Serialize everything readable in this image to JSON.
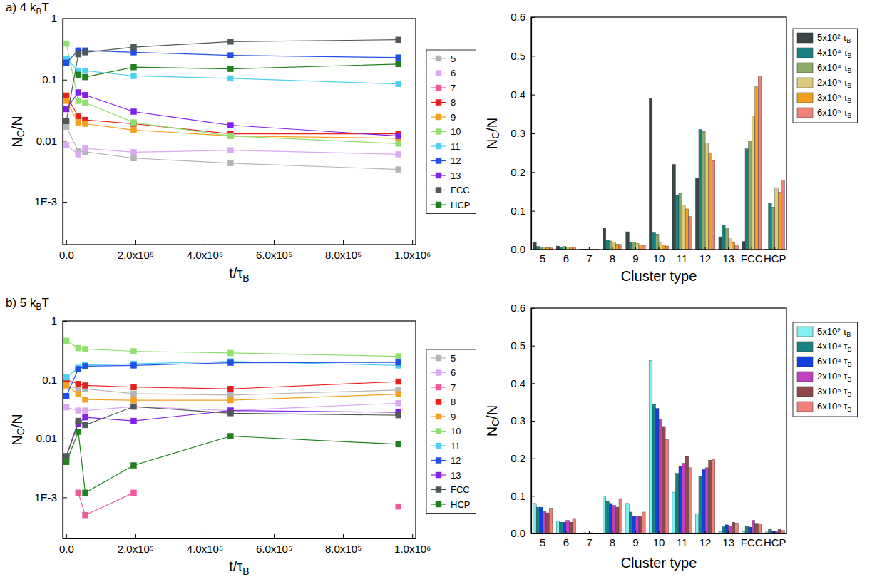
{
  "chart_data": [
    {
      "type": "line",
      "title": "a) 4 kBT",
      "x_label": "t/τB",
      "y_label": "NC/N",
      "x": [
        500,
        35000,
        55000,
        195000,
        475000,
        960000
      ],
      "xlim": [
        -10000,
        1010000
      ],
      "xticks": [
        {
          "value": 0,
          "label": "0.0"
        },
        {
          "value": 200000,
          "label": "2.0x10⁵"
        },
        {
          "value": 400000,
          "label": "4.0x10⁵"
        },
        {
          "value": 600000,
          "label": "6.0x10⁵"
        },
        {
          "value": 800000,
          "label": "8.0x10⁵"
        },
        {
          "value": 1000000,
          "label": "1.0x10⁶"
        }
      ],
      "ylim": [
        0.0002,
        1
      ],
      "yticks": [
        {
          "value": 0.001,
          "label": "1E-3"
        },
        0.01,
        0.1,
        1
      ],
      "log": "y",
      "grid": false,
      "legend": "right",
      "marker": "square",
      "series": [
        {
          "name": "5",
          "color": "#b4b4b4",
          "values": [
            0.017,
            0.0068,
            0.0066,
            0.0052,
            0.0043,
            0.0034
          ]
        },
        {
          "name": "6",
          "color": "#d9a9f2",
          "values": [
            0.0085,
            0.006,
            0.0075,
            0.0065,
            0.007,
            0.006
          ]
        },
        {
          "name": "7",
          "color": "#f0569a",
          "values": [
            null,
            null,
            null,
            null,
            null,
            null
          ]
        },
        {
          "name": "8",
          "color": "#e8201c",
          "values": [
            0.055,
            0.025,
            0.022,
            0.019,
            0.013,
            0.013
          ]
        },
        {
          "name": "9",
          "color": "#f6a020",
          "values": [
            0.045,
            0.02,
            0.019,
            0.015,
            0.012,
            0.011
          ]
        },
        {
          "name": "10",
          "color": "#90e070",
          "values": [
            0.39,
            0.045,
            0.042,
            0.02,
            0.012,
            0.009
          ]
        },
        {
          "name": "11",
          "color": "#50d0f0",
          "values": [
            0.22,
            0.14,
            0.14,
            0.115,
            0.105,
            0.085
          ]
        },
        {
          "name": "12",
          "color": "#2050e8",
          "values": [
            0.19,
            0.3,
            0.3,
            0.28,
            0.25,
            0.23
          ]
        },
        {
          "name": "13",
          "color": "#8020e8",
          "values": [
            0.033,
            0.062,
            0.056,
            0.03,
            0.018,
            0.012
          ]
        },
        {
          "name": "FCC",
          "color": "#505858",
          "values": [
            0.021,
            0.26,
            0.28,
            0.34,
            0.42,
            0.45
          ]
        },
        {
          "name": "HCP",
          "color": "#208020",
          "values": [
            null,
            0.12,
            0.11,
            0.16,
            0.15,
            0.18
          ]
        }
      ]
    },
    {
      "type": "bar",
      "x_label": "Cluster type",
      "y_label": "NC/N",
      "categories": [
        "5",
        "6",
        "7",
        "8",
        "9",
        "10",
        "11",
        "12",
        "13",
        "FCC",
        "HCP"
      ],
      "ylim": [
        0,
        0.6
      ],
      "yticks": [
        {
          "value": 0,
          "label": "0.0"
        },
        0.1,
        0.2,
        0.3,
        0.4,
        0.5,
        0.6
      ],
      "grid": false,
      "legend": "right",
      "series": [
        {
          "name": "5x10² τB",
          "color": "#3a4646",
          "values": [
            0.018,
            0.009,
            0.001,
            0.056,
            0.046,
            0.39,
            0.22,
            0.185,
            0.033,
            0.021,
            0.001
          ]
        },
        {
          "name": "4x10⁴ τB",
          "color": "#1a8080",
          "values": [
            0.008,
            0.007,
            0.001,
            0.024,
            0.02,
            0.045,
            0.14,
            0.31,
            0.062,
            0.26,
            0.12
          ]
        },
        {
          "name": "6x10⁴ τB",
          "color": "#8aaa68",
          "values": [
            0.007,
            0.008,
            0.001,
            0.022,
            0.019,
            0.04,
            0.145,
            0.305,
            0.056,
            0.28,
            0.11
          ]
        },
        {
          "name": "2x10⁵ τB",
          "color": "#dccb7c",
          "values": [
            0.006,
            0.007,
            0.001,
            0.019,
            0.016,
            0.02,
            0.115,
            0.275,
            0.03,
            0.345,
            0.16
          ]
        },
        {
          "name": "3x10⁵ τB",
          "color": "#f0a020",
          "values": [
            0.005,
            0.007,
            0.001,
            0.014,
            0.012,
            0.012,
            0.105,
            0.25,
            0.018,
            0.42,
            0.148
          ]
        },
        {
          "name": "6x10⁵ τB",
          "color": "#f08078",
          "values": [
            0.004,
            0.006,
            0.001,
            0.013,
            0.011,
            0.009,
            0.085,
            0.23,
            0.012,
            0.448,
            0.18
          ]
        }
      ]
    },
    {
      "type": "line",
      "title": "b) 5 kBT",
      "x_label": "t/τB",
      "y_label": "NC/N",
      "x": [
        500,
        35000,
        55000,
        195000,
        475000,
        960000
      ],
      "xlim": [
        -10000,
        1010000
      ],
      "xticks": [
        {
          "value": 0,
          "label": "0.0"
        },
        {
          "value": 200000,
          "label": "2.0x10⁵"
        },
        {
          "value": 400000,
          "label": "4.0x10⁵"
        },
        {
          "value": 600000,
          "label": "6.0x10⁵"
        },
        {
          "value": 800000,
          "label": "8.0x10⁵"
        },
        {
          "value": 1000000,
          "label": "1.0x10⁶"
        }
      ],
      "ylim": [
        0.0002,
        1
      ],
      "yticks": [
        {
          "value": 0.001,
          "label": "1E-3"
        },
        0.01,
        0.1,
        1
      ],
      "log": "y",
      "grid": false,
      "legend": "right",
      "marker": "square",
      "series": [
        {
          "name": "5",
          "color": "#b4b4b4",
          "values": [
            0.08,
            0.07,
            0.07,
            0.058,
            0.055,
            0.067
          ]
        },
        {
          "name": "6",
          "color": "#d9a9f2",
          "values": [
            0.034,
            0.03,
            0.03,
            0.035,
            0.03,
            0.04
          ]
        },
        {
          "name": "7",
          "color": "#f0569a",
          "values": [
            null,
            0.0012,
            0.0005,
            0.0012,
            null,
            0.0007
          ]
        },
        {
          "name": "8",
          "color": "#e8201c",
          "values": [
            0.1,
            0.085,
            0.08,
            0.075,
            0.07,
            0.093
          ]
        },
        {
          "name": "9",
          "color": "#f6a020",
          "values": [
            0.08,
            0.057,
            0.046,
            0.045,
            0.045,
            0.057
          ]
        },
        {
          "name": "10",
          "color": "#90e070",
          "values": [
            0.46,
            0.345,
            0.333,
            0.305,
            0.285,
            0.25
          ]
        },
        {
          "name": "11",
          "color": "#50d0f0",
          "values": [
            0.11,
            0.16,
            0.178,
            0.187,
            0.205,
            0.175
          ]
        },
        {
          "name": "12",
          "color": "#2050e8",
          "values": [
            0.053,
            0.152,
            0.17,
            0.175,
            0.195,
            0.197
          ]
        },
        {
          "name": "13",
          "color": "#8020e8",
          "values": [
            0.005,
            0.018,
            0.023,
            0.02,
            0.03,
            0.028
          ]
        },
        {
          "name": "FCC",
          "color": "#505858",
          "values": [
            0.005,
            0.02,
            0.017,
            0.035,
            0.027,
            0.025
          ]
        },
        {
          "name": "HCP",
          "color": "#208020",
          "values": [
            0.004,
            0.013,
            0.0012,
            0.0035,
            0.011,
            0.008
          ]
        }
      ]
    },
    {
      "type": "bar",
      "x_label": "Cluster type",
      "y_label": "NC/N",
      "categories": [
        "5",
        "6",
        "7",
        "8",
        "9",
        "10",
        "11",
        "12",
        "13",
        "FCC",
        "HCP"
      ],
      "ylim": [
        0,
        0.6
      ],
      "yticks": [
        {
          "value": 0,
          "label": "0.0"
        },
        0.1,
        0.2,
        0.3,
        0.4,
        0.5,
        0.6
      ],
      "grid": false,
      "legend": "right",
      "series": [
        {
          "name": "5x10² τB",
          "color": "#80f0f0",
          "values": [
            0.08,
            0.034,
            0.0,
            0.1,
            0.08,
            0.46,
            0.11,
            0.053,
            0.005,
            0.005,
            0.004
          ]
        },
        {
          "name": "4x10⁴ τB",
          "color": "#1a8080",
          "values": [
            0.07,
            0.03,
            0.002,
            0.085,
            0.057,
            0.345,
            0.16,
            0.152,
            0.018,
            0.02,
            0.013
          ]
        },
        {
          "name": "6x10⁴ τB",
          "color": "#1040e0",
          "values": [
            0.07,
            0.03,
            0.001,
            0.08,
            0.046,
            0.333,
            0.178,
            0.17,
            0.023,
            0.017,
            0.006
          ]
        },
        {
          "name": "2x10⁵ τB",
          "color": "#c040c0",
          "values": [
            0.058,
            0.035,
            0.002,
            0.075,
            0.045,
            0.305,
            0.187,
            0.175,
            0.02,
            0.035,
            0.006
          ]
        },
        {
          "name": "3x10⁵ τB",
          "color": "#904848",
          "values": [
            0.055,
            0.03,
            0.0,
            0.07,
            0.045,
            0.285,
            0.205,
            0.195,
            0.03,
            0.027,
            0.011
          ]
        },
        {
          "name": "6x10⁵ τB",
          "color": "#f08078",
          "values": [
            0.067,
            0.04,
            0.001,
            0.093,
            0.057,
            0.25,
            0.175,
            0.197,
            0.028,
            0.025,
            0.008
          ]
        }
      ]
    }
  ]
}
